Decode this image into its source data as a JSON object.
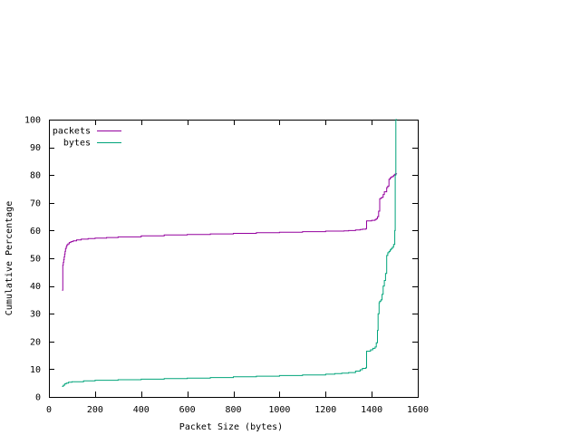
{
  "chart_data": {
    "type": "line",
    "title": "",
    "xlabel": "Packet Size (bytes)",
    "ylabel": "Cumulative Percentage",
    "xlim": [
      0,
      1600
    ],
    "ylim": [
      0,
      100
    ],
    "xticks": [
      0,
      200,
      400,
      600,
      800,
      1000,
      1200,
      1400,
      1600
    ],
    "yticks": [
      0,
      10,
      20,
      30,
      40,
      50,
      60,
      70,
      80,
      90,
      100
    ],
    "grid": false,
    "legend": "top-left",
    "series": [
      {
        "name": "packets",
        "color": "#94009e",
        "x": [
          57,
          60,
          60,
          62,
          64,
          66,
          68,
          70,
          72,
          75,
          78,
          82,
          88,
          95,
          105,
          120,
          140,
          170,
          200,
          250,
          300,
          400,
          500,
          600,
          700,
          800,
          900,
          1000,
          1100,
          1200,
          1280,
          1300,
          1330,
          1350,
          1360,
          1375,
          1378,
          1400,
          1415,
          1420,
          1425,
          1430,
          1435,
          1440,
          1445,
          1450,
          1455,
          1465,
          1470,
          1475,
          1480,
          1485,
          1490,
          1495,
          1500,
          1505,
          1510
        ],
        "y": [
          38.5,
          38.5,
          47.5,
          48.5,
          49.5,
          50.5,
          51.5,
          52.5,
          53.5,
          54.2,
          54.8,
          55.2,
          55.7,
          56.0,
          56.3,
          56.6,
          56.9,
          57.1,
          57.3,
          57.5,
          57.7,
          58.1,
          58.4,
          58.6,
          58.8,
          59.0,
          59.2,
          59.4,
          59.6,
          59.8,
          59.9,
          60.0,
          60.2,
          60.4,
          60.5,
          60.7,
          63.5,
          63.7,
          64.0,
          64.3,
          65.0,
          67.0,
          71.5,
          71.8,
          72.0,
          73.0,
          74.0,
          75.5,
          76.0,
          78.5,
          79.0,
          79.3,
          79.5,
          80.0,
          80.3,
          80.5,
          80.5
        ]
      },
      {
        "name": "bytes",
        "color": "#00a47a",
        "x": [
          57,
          62,
          68,
          75,
          85,
          100,
          150,
          200,
          300,
          400,
          500,
          600,
          700,
          800,
          900,
          1000,
          1100,
          1200,
          1240,
          1270,
          1300,
          1330,
          1350,
          1360,
          1375,
          1378,
          1395,
          1405,
          1415,
          1420,
          1425,
          1428,
          1432,
          1435,
          1440,
          1445,
          1450,
          1455,
          1460,
          1465,
          1470,
          1475,
          1480,
          1485,
          1490,
          1495,
          1500,
          1502,
          1505,
          1510
        ],
        "y": [
          3.8,
          4.2,
          4.7,
          5.0,
          5.3,
          5.5,
          5.8,
          6.0,
          6.2,
          6.4,
          6.6,
          6.8,
          7.0,
          7.3,
          7.5,
          7.7,
          7.9,
          8.2,
          8.4,
          8.6,
          8.8,
          9.3,
          9.8,
          10.3,
          10.6,
          16.5,
          17.0,
          17.5,
          18.0,
          19.5,
          24.0,
          30.0,
          34.0,
          34.5,
          35.0,
          37.0,
          40.0,
          42.0,
          44.5,
          51.0,
          52.0,
          52.5,
          53.0,
          53.5,
          54.0,
          55.0,
          60.0,
          80.0,
          100.0,
          100.0
        ]
      }
    ]
  }
}
